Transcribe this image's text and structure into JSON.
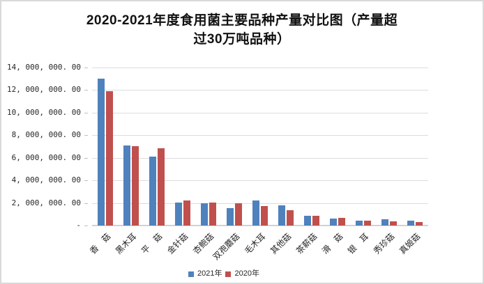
{
  "window": {
    "background": "#ffffff",
    "frame_border": "#d9d9d9"
  },
  "chart_data": {
    "type": "bar",
    "title": "2020-2021年度食用菌主要品种产量对比图（产量超过30万吨品种）",
    "title_line1": "2020-2021年度食用菌主要品种产量对比图（产量超",
    "title_line2": "过30万吨品种）",
    "categories": [
      "香　菇",
      "黑木耳",
      "平　菇",
      "金针菇",
      "杏鲍菇",
      "双孢蘑菇",
      "毛木耳",
      "其他菇",
      "茶薪菇",
      "滑　菇",
      "银　耳",
      "秀珍菇",
      "真姬菇"
    ],
    "series": [
      {
        "name": "2021年",
        "color": "#4F81BD",
        "values": [
          13000000,
          7070000,
          6100000,
          2050000,
          1950000,
          1550000,
          2200000,
          1800000,
          850000,
          620000,
          450000,
          540000,
          450000
        ]
      },
      {
        "name": "2020年",
        "color": "#C0504D",
        "values": [
          11900000,
          7060000,
          6850000,
          2250000,
          2050000,
          1950000,
          1750000,
          1350000,
          850000,
          680000,
          410000,
          350000,
          310000
        ]
      }
    ],
    "ylim": [
      0,
      14000000
    ],
    "y_ticks": [
      {
        "value": 14000000,
        "label": "14, 000, 000. 00"
      },
      {
        "value": 12000000,
        "label": "12, 000, 000. 00"
      },
      {
        "value": 10000000,
        "label": "10, 000, 000. 00"
      },
      {
        "value": 8000000,
        "label": "8, 000, 000. 00"
      },
      {
        "value": 6000000,
        "label": "6, 000, 000. 00"
      },
      {
        "value": 4000000,
        "label": "4, 000, 000. 00"
      },
      {
        "value": 2000000,
        "label": "2, 000, 000. 00"
      },
      {
        "value": 0,
        "label": "-"
      }
    ],
    "grid": true,
    "legend_position": "bottom"
  }
}
